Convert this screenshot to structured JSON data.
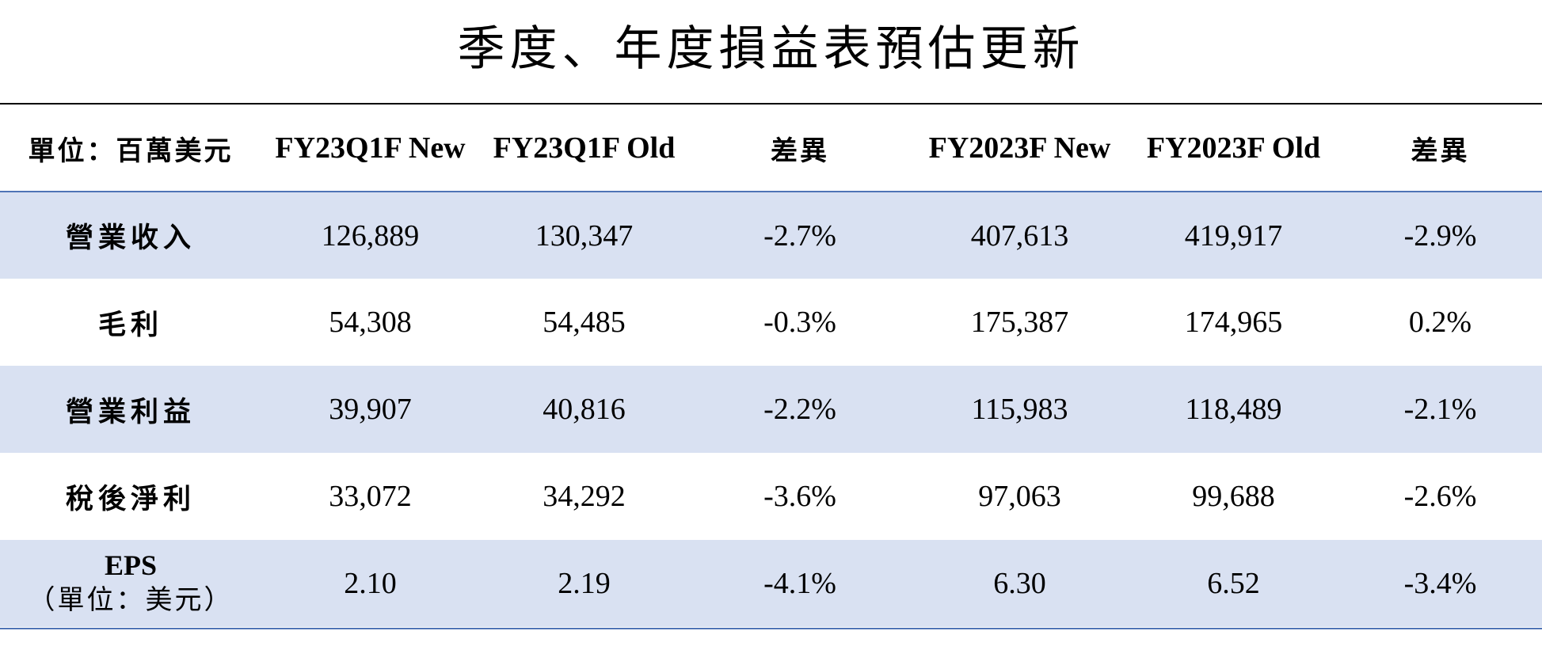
{
  "title": "季度、年度損益表預估更新",
  "colors": {
    "shaded_row": "#d9e1f2",
    "rule_blue": "#4e73b6",
    "rule_black": "#000000"
  },
  "table": {
    "headers": [
      "單位：百萬美元",
      "FY23Q1F New",
      "FY23Q1F Old",
      "差異",
      "FY2023F New",
      "FY2023F Old",
      "差異"
    ],
    "rows": [
      {
        "label": "營業收入",
        "cells": [
          "126,889",
          "130,347",
          "-2.7%",
          "407,613",
          "419,917",
          "-2.9%"
        ],
        "shaded": true
      },
      {
        "label": "毛利",
        "cells": [
          "54,308",
          "54,485",
          "-0.3%",
          "175,387",
          "174,965",
          "0.2%"
        ],
        "shaded": false
      },
      {
        "label": "營業利益",
        "cells": [
          "39,907",
          "40,816",
          "-2.2%",
          "115,983",
          "118,489",
          "-2.1%"
        ],
        "shaded": true
      },
      {
        "label": "稅後淨利",
        "cells": [
          "33,072",
          "34,292",
          "-3.6%",
          "97,063",
          "99,688",
          "-2.6%"
        ],
        "shaded": false
      },
      {
        "label": "EPS",
        "sublabel": "（單位：美元）",
        "cells": [
          "2.10",
          "2.19",
          "-4.1%",
          "6.30",
          "6.52",
          "-3.4%"
        ],
        "shaded": true
      }
    ]
  }
}
